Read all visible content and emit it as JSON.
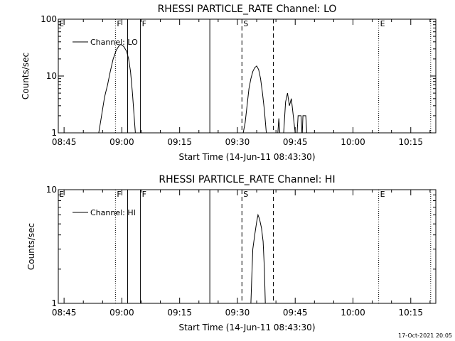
{
  "chart_data": [
    {
      "type": "line",
      "title": "RHESSI PARTICLE_RATE Channel: LO",
      "xlabel": "Start Time (14-Jun-11 08:43:30)",
      "ylabel": "Counts/sec",
      "ylog": true,
      "ylim": [
        1,
        100
      ],
      "yticks": [
        {
          "v": 1,
          "t": "1"
        },
        {
          "v": 10,
          "t": "10"
        },
        {
          "v": 100,
          "t": "100"
        }
      ],
      "xlim": [
        "08:43:30",
        "10:21:30"
      ],
      "xticks": [
        "08:45",
        "09:00",
        "09:15",
        "09:30",
        "09:45",
        "10:00",
        "10:15"
      ],
      "legend": {
        "label": "Channel: LO",
        "placement": "top-left"
      },
      "series": [
        {
          "segments": [
            [
              [
                "08:54:00",
                1.0
              ],
              [
                "08:54:30",
                1.6
              ],
              [
                "08:55:00",
                2.6
              ],
              [
                "08:55:30",
                4.2
              ],
              [
                "08:55:45",
                5.0
              ],
              [
                "08:56:15",
                6.8
              ],
              [
                "08:57:00",
                12.0
              ],
              [
                "08:57:45",
                20.0
              ],
              [
                "08:58:30",
                28.0
              ],
              [
                "08:59:15",
                34.0
              ],
              [
                "08:59:45",
                36.0
              ],
              [
                "09:00:30",
                33.0
              ],
              [
                "09:01:15",
                27.0
              ],
              [
                "09:01:45",
                20.0
              ],
              [
                "09:02:15",
                12.0
              ],
              [
                "09:02:45",
                5.0
              ],
              [
                "09:03:10",
                2.0
              ],
              [
                "09:03:30",
                1.0
              ]
            ],
            [
              [
                "09:31:30",
                1.0
              ],
              [
                "09:32:00",
                1.5
              ],
              [
                "09:32:30",
                3.0
              ],
              [
                "09:33:00",
                6.0
              ],
              [
                "09:33:30",
                9.0
              ],
              [
                "09:34:00",
                12.0
              ],
              [
                "09:34:30",
                14.0
              ],
              [
                "09:35:00",
                15.0
              ],
              [
                "09:35:30",
                13.0
              ],
              [
                "09:36:00",
                9.0
              ],
              [
                "09:36:30",
                5.0
              ],
              [
                "09:37:00",
                2.5
              ],
              [
                "09:37:30",
                1.0
              ]
            ],
            [
              [
                "09:40:30",
                1.0
              ],
              [
                "09:40:45",
                1.8
              ],
              [
                "09:41:00",
                1.0
              ]
            ],
            [
              [
                "09:42:00",
                1.0
              ],
              [
                "09:42:30",
                3.5
              ],
              [
                "09:43:00",
                5.0
              ],
              [
                "09:43:30",
                3.0
              ],
              [
                "09:44:00",
                4.0
              ],
              [
                "09:44:30",
                2.0
              ],
              [
                "09:45:00",
                1.0
              ]
            ],
            [
              [
                "09:45:30",
                1.0
              ],
              [
                "09:45:45",
                2.0
              ],
              [
                "09:46:30",
                2.0
              ],
              [
                "09:46:45",
                1.0
              ]
            ],
            [
              [
                "09:46:50",
                1.0
              ],
              [
                "09:47:00",
                2.0
              ],
              [
                "09:47:45",
                2.0
              ],
              [
                "09:48:00",
                1.0
              ]
            ]
          ]
        }
      ],
      "vlines": [
        {
          "t": "08:58:20",
          "style": "dotted",
          "label": "F"
        },
        {
          "t": "09:01:30",
          "style": "solid",
          "label": ""
        },
        {
          "t": "09:04:50",
          "style": "solid",
          "label": "F"
        },
        {
          "t": "09:22:50",
          "style": "solid",
          "label": ""
        },
        {
          "t": "09:31:10",
          "style": "dashed",
          "label": "S"
        },
        {
          "t": "09:39:20",
          "style": "dashed",
          "label": ""
        },
        {
          "t": "10:06:40",
          "style": "dotted",
          "label": "E"
        },
        {
          "t": "10:20:10",
          "style": "dotted",
          "label": ""
        }
      ],
      "corner_label": "E"
    },
    {
      "type": "line",
      "title": "RHESSI PARTICLE_RATE Channel: HI",
      "xlabel": "Start Time (14-Jun-11 08:43:30)",
      "ylabel": "Counts/sec",
      "ylog": true,
      "ylim": [
        1,
        10
      ],
      "yticks": [
        {
          "v": 1,
          "t": "1"
        },
        {
          "v": 10,
          "t": "10"
        }
      ],
      "xlim": [
        "08:43:30",
        "10:21:30"
      ],
      "xticks": [
        "08:45",
        "09:00",
        "09:15",
        "09:30",
        "09:45",
        "10:00",
        "10:15"
      ],
      "legend": {
        "label": "Channel: HI",
        "placement": "top-left"
      },
      "series": [
        {
          "segments": [
            [
              [
                "09:33:30",
                1.0
              ],
              [
                "09:33:45",
                1.8
              ],
              [
                "09:34:00",
                3.0
              ],
              [
                "09:34:30",
                4.0
              ],
              [
                "09:35:00",
                5.2
              ],
              [
                "09:35:20",
                6.0
              ],
              [
                "09:35:45",
                5.5
              ],
              [
                "09:36:15",
                4.6
              ],
              [
                "09:36:40",
                3.5
              ],
              [
                "09:37:00",
                2.0
              ],
              [
                "09:37:15",
                1.0
              ]
            ]
          ]
        }
      ],
      "vlines": [
        {
          "t": "08:58:20",
          "style": "dotted",
          "label": "F"
        },
        {
          "t": "09:01:30",
          "style": "solid",
          "label": ""
        },
        {
          "t": "09:04:50",
          "style": "solid",
          "label": "F"
        },
        {
          "t": "09:22:50",
          "style": "solid",
          "label": ""
        },
        {
          "t": "09:31:10",
          "style": "dashed",
          "label": "S"
        },
        {
          "t": "09:39:20",
          "style": "dashed",
          "label": ""
        },
        {
          "t": "10:06:40",
          "style": "dotted",
          "label": "E"
        },
        {
          "t": "10:20:10",
          "style": "dotted",
          "label": ""
        }
      ],
      "corner_label": "E"
    }
  ],
  "footer": {
    "timestamp": "17-Oct-2021 20:05"
  }
}
